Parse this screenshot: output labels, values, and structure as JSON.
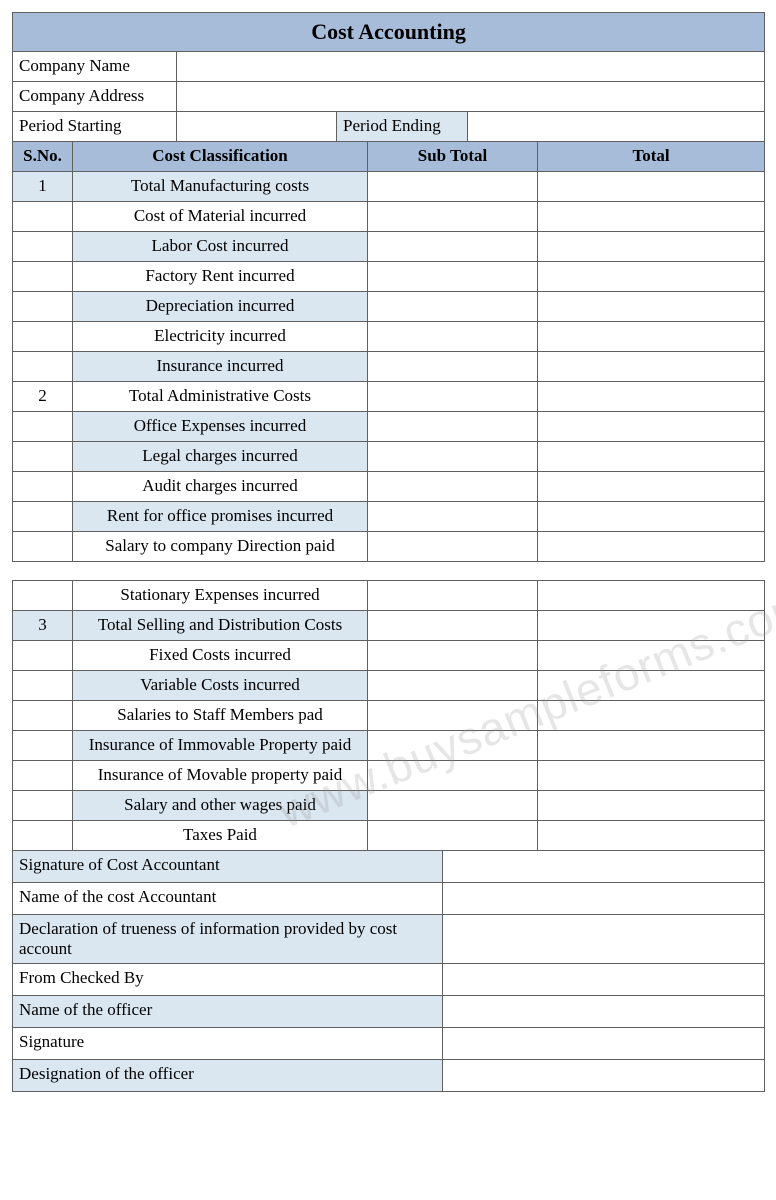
{
  "colors": {
    "header_blue": "#a6bcd9",
    "light_blue": "#dae6f0",
    "border": "#606060",
    "text": "#000000",
    "watermark": "rgba(140,140,140,0.22)"
  },
  "title": "Cost Accounting",
  "company_info": {
    "name_label": "Company Name",
    "address_label": "Company Address",
    "period_start_label": "Period Starting",
    "period_end_label": "Period Ending",
    "name_value": "",
    "address_value": "",
    "period_start_value": "",
    "period_end_value": ""
  },
  "columns": {
    "sno": "S.No.",
    "classification": "Cost Classification",
    "subtotal": "Sub Total",
    "total": "Total"
  },
  "col_widths": {
    "sno": 60,
    "class": 295,
    "sub": 170,
    "total": 227
  },
  "sections": [
    {
      "num": "1",
      "heading": "Total Manufacturing costs",
      "heading_shaded": true,
      "items": [
        {
          "label": "Cost of Material incurred",
          "shaded": false
        },
        {
          "label": "Labor Cost incurred",
          "shaded": true
        },
        {
          "label": "Factory Rent incurred",
          "shaded": false
        },
        {
          "label": "Depreciation incurred",
          "shaded": true
        },
        {
          "label": "Electricity incurred",
          "shaded": false
        },
        {
          "label": "Insurance incurred",
          "shaded": true
        }
      ]
    },
    {
      "num": "2",
      "heading": "Total Administrative Costs",
      "heading_shaded": false,
      "items": [
        {
          "label": "Office Expenses incurred",
          "shaded": true
        },
        {
          "label": "Legal charges incurred",
          "shaded": true
        },
        {
          "label": "Audit charges incurred",
          "shaded": false
        },
        {
          "label": "Rent for office promises incurred",
          "shaded": true
        },
        {
          "label": "Salary to company Direction paid",
          "shaded": false
        }
      ]
    }
  ],
  "sections2": [
    {
      "pre_items": [
        {
          "label": "Stationary Expenses incurred",
          "shaded": false
        }
      ],
      "num": "3",
      "heading": "Total Selling and Distribution Costs",
      "heading_shaded": true,
      "items": [
        {
          "label": "Fixed Costs incurred",
          "shaded": false
        },
        {
          "label": "Variable Costs incurred",
          "shaded": true
        },
        {
          "label": "Salaries to Staff Members pad",
          "shaded": false
        },
        {
          "label": "Insurance of Immovable Property paid",
          "shaded": true
        },
        {
          "label": "Insurance of Movable property paid",
          "shaded": false
        },
        {
          "label": "Salary and other wages paid",
          "shaded": true
        },
        {
          "label": "Taxes Paid",
          "shaded": false
        }
      ]
    }
  ],
  "footer_rows": [
    {
      "label": "Signature of Cost Accountant",
      "shaded": true
    },
    {
      "label": "Name of the cost Accountant",
      "shaded": false
    },
    {
      "label": "Declaration of trueness of information provided by cost account",
      "shaded": true
    },
    {
      "label": "From Checked By",
      "shaded": false
    },
    {
      "label": "Name of the officer",
      "shaded": true
    },
    {
      "label": "Signature",
      "shaded": false
    },
    {
      "label": "Designation of the officer",
      "shaded": true
    }
  ],
  "watermark": "www.buysampleforms.com"
}
